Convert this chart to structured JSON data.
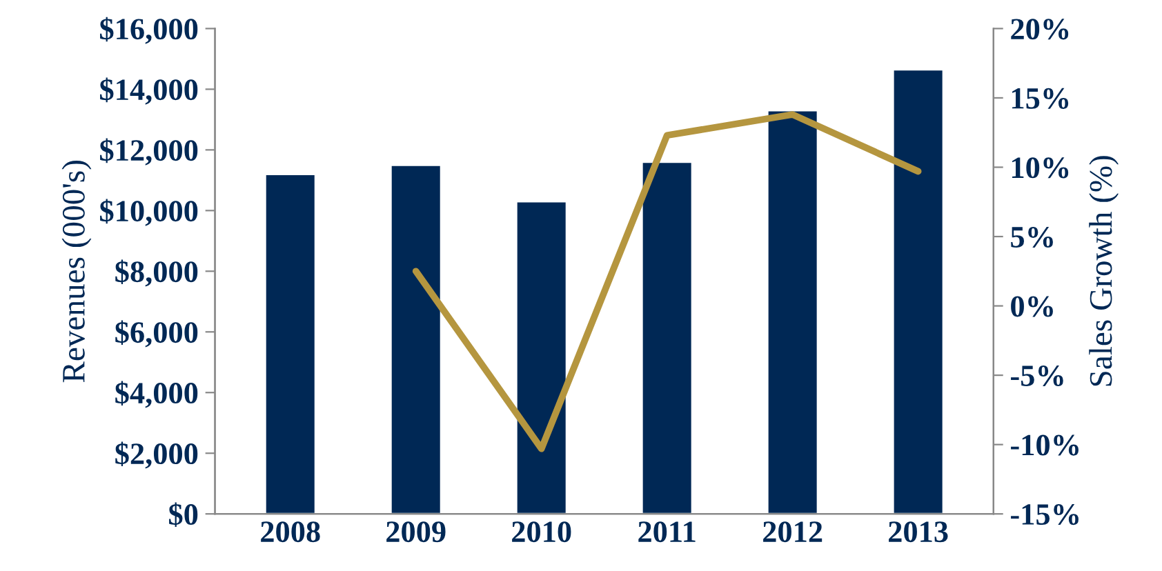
{
  "chart_data": {
    "type": "bar",
    "categories": [
      "2008",
      "2009",
      "2010",
      "2011",
      "2012",
      "2013"
    ],
    "ylabel": "Revenues (000's)",
    "y2label": "Sales Growth (%)",
    "series": [
      {
        "color": "#002855",
        "values": [
          11200,
          11500,
          10300,
          11600,
          13300,
          14650
        ]
      },
      {
        "type": "line",
        "axis": "y2",
        "color": "#b5963f",
        "values": [
          null,
          2.5,
          -10.3,
          12.3,
          13.8,
          9.7
        ]
      }
    ],
    "ylim": [
      0,
      16000
    ],
    "yticks": [
      {
        "value": 0,
        "label": "$0"
      },
      {
        "value": 2000,
        "label": "$2,000"
      },
      {
        "value": 4000,
        "label": "$4,000"
      },
      {
        "value": 6000,
        "label": "$6,000"
      },
      {
        "value": 8000,
        "label": "$8,000"
      },
      {
        "value": 10000,
        "label": "$10,000"
      },
      {
        "value": 12000,
        "label": "$12,000"
      },
      {
        "value": 14000,
        "label": "$14,000"
      },
      {
        "value": 16000,
        "label": "$16,000"
      }
    ],
    "y2lim": [
      -15,
      20
    ],
    "y2ticks": [
      {
        "value": -15,
        "label": "-15%"
      },
      {
        "value": -10,
        "label": "-10%"
      },
      {
        "value": -5,
        "label": "-5%"
      },
      {
        "value": 0,
        "label": "0%"
      },
      {
        "value": 5,
        "label": "5%"
      },
      {
        "value": 10,
        "label": "10%"
      },
      {
        "value": 15,
        "label": "15%"
      },
      {
        "value": 20,
        "label": "20%"
      }
    ],
    "grid": false,
    "legend": false,
    "marker": "none",
    "line_style": "solid"
  }
}
